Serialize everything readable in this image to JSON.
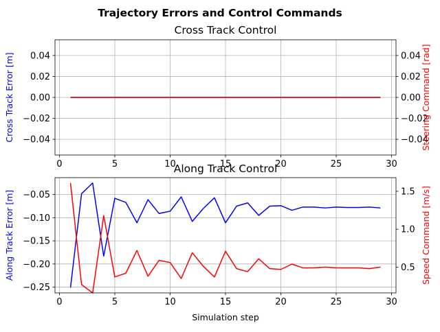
{
  "suptitle": "Trajectory Errors and Control Commands",
  "chart_data": [
    {
      "type": "line",
      "title": "Cross Track Control",
      "xlabel": "",
      "ylabel": "Cross Track Error [m]",
      "ylabel_right": "Steering Command [rad]",
      "xlim": [
        -0.4,
        30.4
      ],
      "ylim": [
        -0.055,
        0.055
      ],
      "ylim_right": [
        -0.055,
        0.055
      ],
      "grid": true,
      "colors": {
        "left": "#0000ff",
        "right": "#ff0000"
      },
      "x_ticks": [
        0,
        5,
        10,
        15,
        20,
        25,
        30
      ],
      "y_ticks": [
        -0.04,
        -0.02,
        0.0,
        0.02,
        0.04
      ],
      "y_tick_labels": [
        "−0.04",
        "−0.02",
        "0.00",
        "0.02",
        "0.04"
      ],
      "y_ticks_right": [
        -0.04,
        -0.02,
        0.0,
        0.02,
        0.04
      ],
      "y_tick_labels_right": [
        "−0.04",
        "−0.02",
        "0.00",
        "0.02",
        "0.04"
      ],
      "x": [
        1,
        2,
        3,
        4,
        5,
        6,
        7,
        8,
        9,
        10,
        11,
        12,
        13,
        14,
        15,
        16,
        17,
        18,
        19,
        20,
        21,
        22,
        23,
        24,
        25,
        26,
        27,
        28,
        29
      ],
      "series": [
        {
          "axis": "left",
          "color": "#0000ff",
          "values": [
            0,
            0,
            0,
            0,
            0,
            0,
            0,
            0,
            0,
            0,
            0,
            0,
            0,
            0,
            0,
            0,
            0,
            0,
            0,
            0,
            0,
            0,
            0,
            0,
            0,
            0,
            0,
            0,
            0
          ]
        },
        {
          "axis": "right",
          "color": "#ff0000",
          "values": [
            0,
            0,
            0,
            0,
            0,
            0,
            0,
            0,
            0,
            0,
            0,
            0,
            0,
            0,
            0,
            0,
            0,
            0,
            0,
            0,
            0,
            0,
            0,
            0,
            0,
            0,
            0,
            0,
            0
          ]
        }
      ]
    },
    {
      "type": "line",
      "title": "Along Track Control",
      "xlabel": "Simulation step",
      "ylabel": "Along Track Error [m]",
      "ylabel_right": "Speed Command [m/s]",
      "xlim": [
        -0.4,
        30.4
      ],
      "ylim": [
        -0.2625,
        -0.0135
      ],
      "ylim_right": [
        0.16,
        1.68
      ],
      "grid": true,
      "colors": {
        "left": "#0000ff",
        "right": "#ff0000"
      },
      "x_ticks": [
        0,
        5,
        10,
        15,
        20,
        25,
        30
      ],
      "y_ticks": [
        -0.25,
        -0.2,
        -0.15,
        -0.1,
        -0.05
      ],
      "y_tick_labels": [
        "−0.25",
        "−0.20",
        "−0.15",
        "−0.10",
        "−0.05"
      ],
      "y_ticks_right": [
        0.5,
        1.0,
        1.5
      ],
      "y_tick_labels_right": [
        "0.5",
        "1.0",
        "1.5"
      ],
      "x": [
        1,
        2,
        3,
        4,
        5,
        6,
        7,
        8,
        9,
        10,
        11,
        12,
        13,
        14,
        15,
        16,
        17,
        18,
        19,
        20,
        21,
        22,
        23,
        24,
        25,
        26,
        27,
        28,
        29
      ],
      "series": [
        {
          "axis": "left",
          "color": "#0000ff",
          "values": [
            -0.251,
            -0.048,
            -0.025,
            -0.183,
            -0.058,
            -0.067,
            -0.111,
            -0.061,
            -0.091,
            -0.086,
            -0.055,
            -0.108,
            -0.08,
            -0.057,
            -0.111,
            -0.075,
            -0.068,
            -0.095,
            -0.075,
            -0.074,
            -0.084,
            -0.077,
            -0.077,
            -0.079,
            -0.077,
            -0.078,
            -0.078,
            -0.077,
            -0.079
          ]
        },
        {
          "axis": "right",
          "color": "#ff0000",
          "values": [
            1.61,
            0.27,
            0.16,
            1.18,
            0.37,
            0.42,
            0.72,
            0.38,
            0.59,
            0.56,
            0.35,
            0.69,
            0.51,
            0.37,
            0.71,
            0.48,
            0.44,
            0.61,
            0.48,
            0.47,
            0.54,
            0.49,
            0.49,
            0.5,
            0.49,
            0.49,
            0.49,
            0.48,
            0.5
          ]
        }
      ]
    }
  ]
}
